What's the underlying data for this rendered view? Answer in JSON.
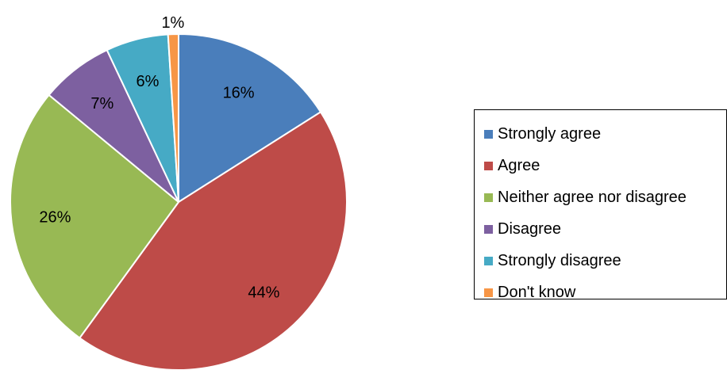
{
  "chart_data": {
    "type": "pie",
    "title": "",
    "start_angle_deg": 0,
    "direction": "clockwise",
    "legend_placement": "right",
    "slices": [
      {
        "label": "Strongly agree",
        "value": 16,
        "display": "16%",
        "color": "#4A7EBB"
      },
      {
        "label": "Agree",
        "value": 44,
        "display": "44%",
        "color": "#BE4B48"
      },
      {
        "label": "Neither agree nor disagree",
        "value": 26,
        "display": "26%",
        "color": "#98B954"
      },
      {
        "label": "Disagree",
        "value": 7,
        "display": "7%",
        "color": "#7D60A0"
      },
      {
        "label": "Strongly disagree",
        "value": 6,
        "display": "6%",
        "color": "#46AAC5"
      },
      {
        "label": "Don't know",
        "value": 1,
        "display": "1%",
        "color": "#F79646"
      }
    ]
  }
}
